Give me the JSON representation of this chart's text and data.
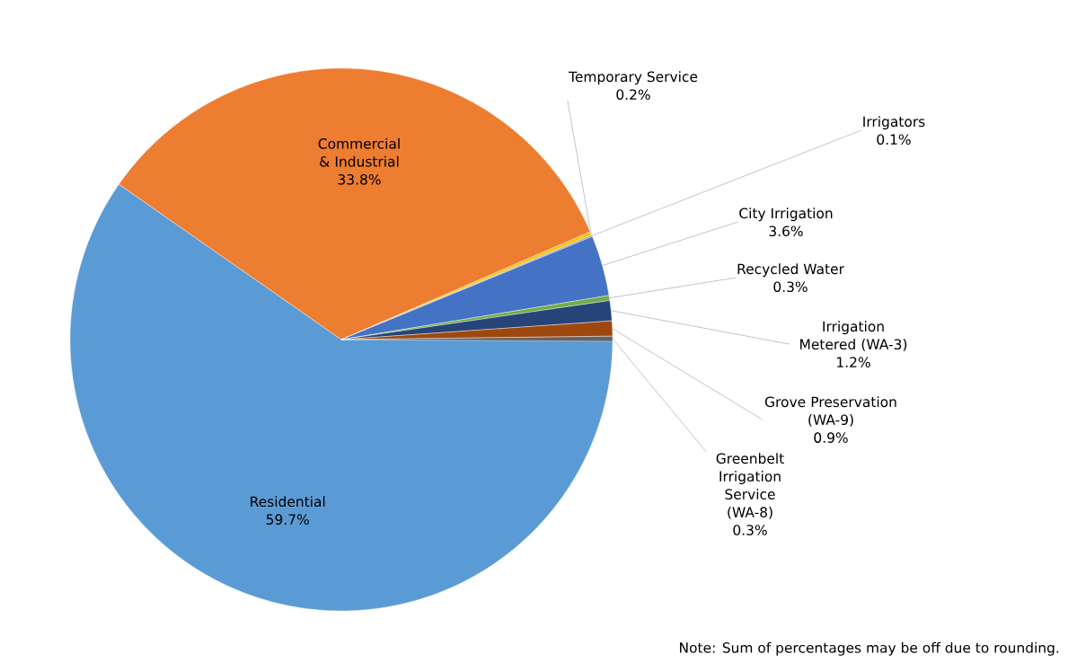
{
  "chart_data": {
    "type": "pie",
    "categories": [
      "Residential",
      "Commercial & Industrial",
      "Temporary Service",
      "Irrigators",
      "City Irrigation",
      "Recycled Water",
      "Irrigation Metered (WA-3)",
      "Grove Preservation (WA-9)",
      "Greenbelt Irrigation Service (WA-8)"
    ],
    "values": [
      59.7,
      33.8,
      0.2,
      0.1,
      3.6,
      0.3,
      1.2,
      0.9,
      0.3
    ],
    "value_labels": [
      "59.7%",
      "33.8%",
      "0.2%",
      "0.1%",
      "3.6%",
      "0.3%",
      "1.2%",
      "0.9%",
      "0.3%"
    ],
    "colors": [
      "#5b9bd5",
      "#ed7d31",
      "#ffc000",
      "#a5a5a5",
      "#4472c4",
      "#70ad47",
      "#264478",
      "#9e480e",
      "#636363"
    ],
    "annotations": [
      "Note: Sum of percentages may be off due to rounding."
    ]
  }
}
